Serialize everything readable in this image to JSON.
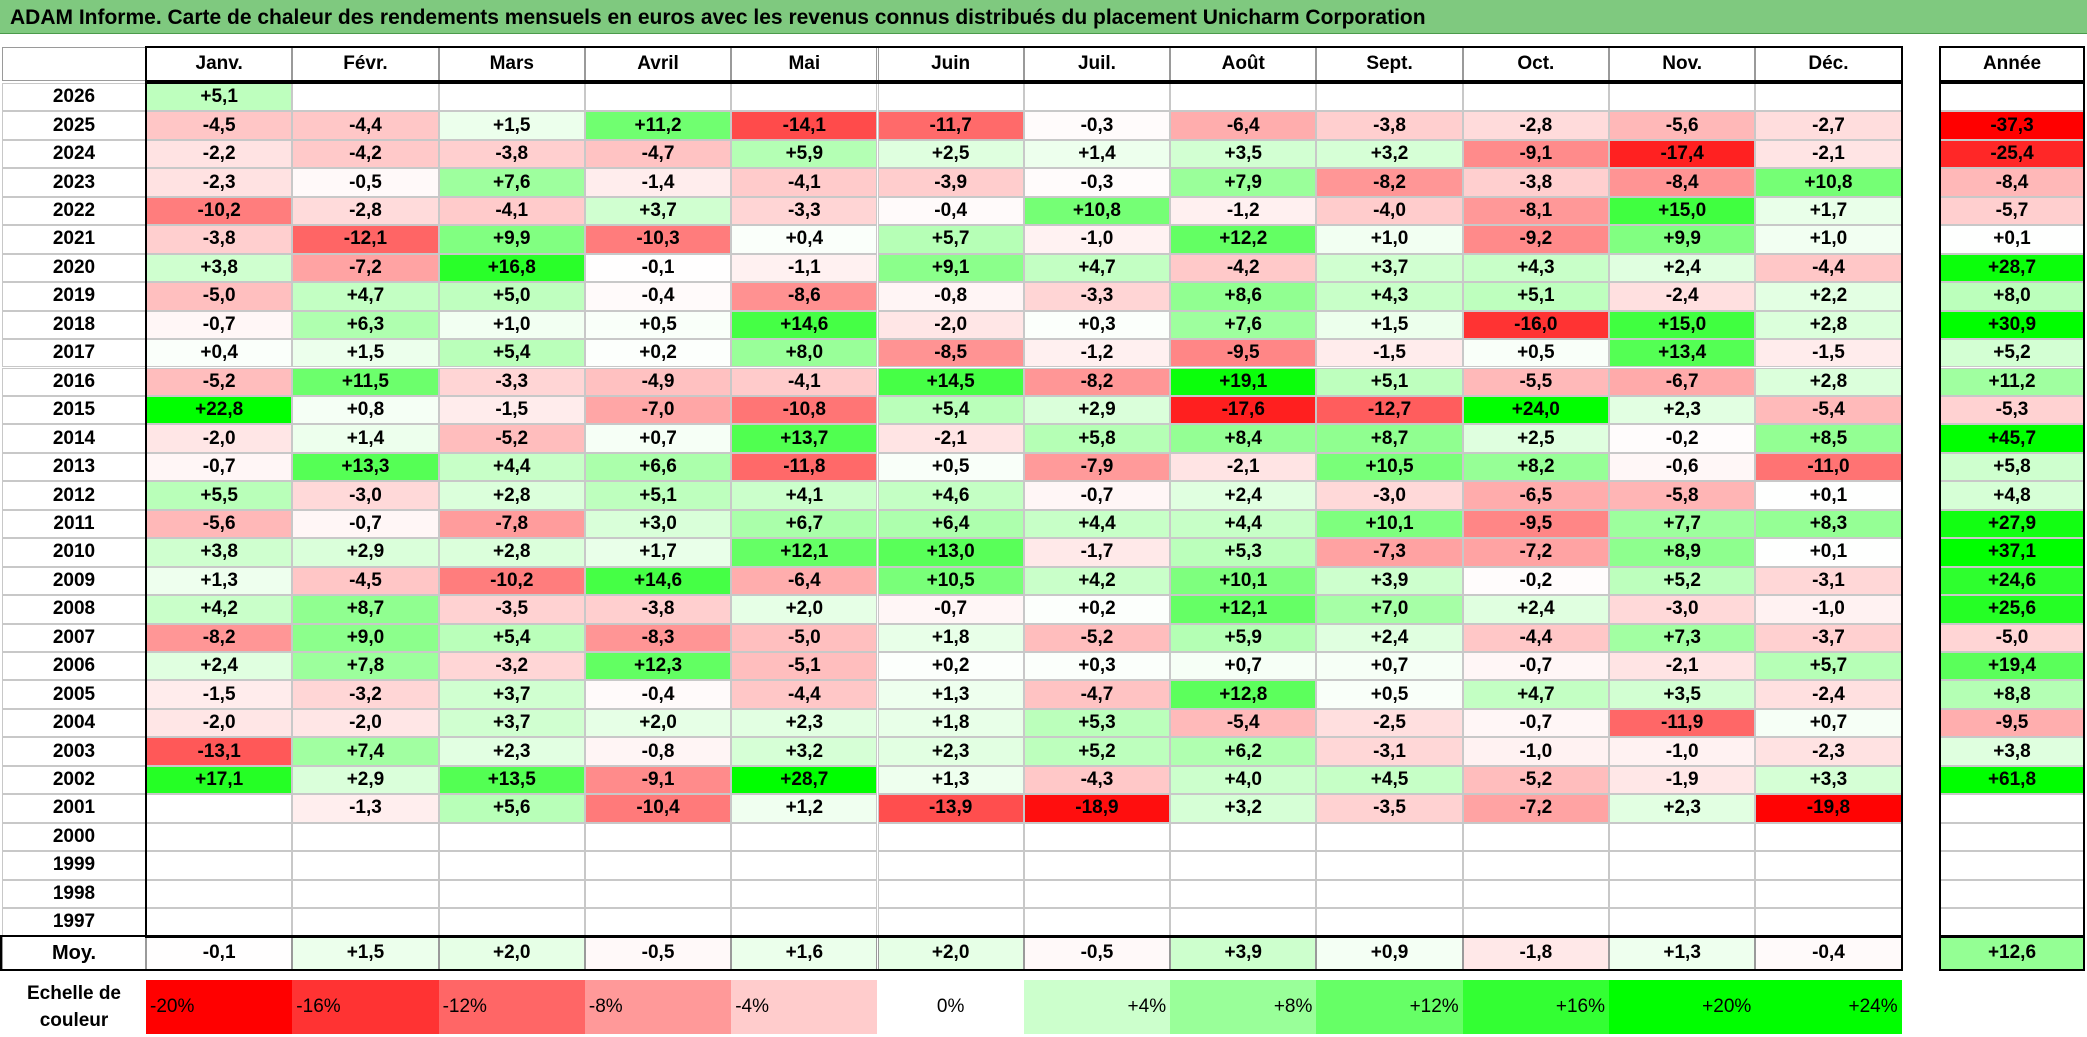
{
  "title": "ADAM Informe. Carte de chaleur des rendements mensuels en euros avec les revenus connus distribués du placement Unicharm Corporation",
  "chart_data": {
    "type": "heatmap",
    "months": [
      "Janv.",
      "Févr.",
      "Mars",
      "Avril",
      "Mai",
      "Juin",
      "Juil.",
      "Août",
      "Sept.",
      "Oct.",
      "Nov.",
      "Déc."
    ],
    "year_header": "Année",
    "avg_label": "Moy.",
    "rows": [
      {
        "year": "2026",
        "values": [
          "+5,1",
          "",
          "",
          "",
          "",
          "",
          "",
          "",
          "",
          "",
          "",
          ""
        ],
        "annual": ""
      },
      {
        "year": "2025",
        "values": [
          "-4,5",
          "-4,4",
          "+1,5",
          "+11,2",
          "-14,1",
          "-11,7",
          "-0,3",
          "-6,4",
          "-3,8",
          "-2,8",
          "-5,6",
          "-2,7"
        ],
        "annual": "-37,3"
      },
      {
        "year": "2024",
        "values": [
          "-2,2",
          "-4,2",
          "-3,8",
          "-4,7",
          "+5,9",
          "+2,5",
          "+1,4",
          "+3,5",
          "+3,2",
          "-9,1",
          "-17,4",
          "-2,1"
        ],
        "annual": "-25,4"
      },
      {
        "year": "2023",
        "values": [
          "-2,3",
          "-0,5",
          "+7,6",
          "-1,4",
          "-4,1",
          "-3,9",
          "-0,3",
          "+7,9",
          "-8,2",
          "-3,8",
          "-8,4",
          "+10,8"
        ],
        "annual": "-8,4"
      },
      {
        "year": "2022",
        "values": [
          "-10,2",
          "-2,8",
          "-4,1",
          "+3,7",
          "-3,3",
          "-0,4",
          "+10,8",
          "-1,2",
          "-4,0",
          "-8,1",
          "+15,0",
          "+1,7"
        ],
        "annual": "-5,7"
      },
      {
        "year": "2021",
        "values": [
          "-3,8",
          "-12,1",
          "+9,9",
          "-10,3",
          "+0,4",
          "+5,7",
          "-1,0",
          "+12,2",
          "+1,0",
          "-9,2",
          "+9,9",
          "+1,0"
        ],
        "annual": "+0,1"
      },
      {
        "year": "2020",
        "values": [
          "+3,8",
          "-7,2",
          "+16,8",
          "-0,1",
          "-1,1",
          "+9,1",
          "+4,7",
          "-4,2",
          "+3,7",
          "+4,3",
          "+2,4",
          "-4,4"
        ],
        "annual": "+28,7"
      },
      {
        "year": "2019",
        "values": [
          "-5,0",
          "+4,7",
          "+5,0",
          "-0,4",
          "-8,6",
          "-0,8",
          "-3,3",
          "+8,6",
          "+4,3",
          "+5,1",
          "-2,4",
          "+2,2"
        ],
        "annual": "+8,0"
      },
      {
        "year": "2018",
        "values": [
          "-0,7",
          "+6,3",
          "+1,0",
          "+0,5",
          "+14,6",
          "-2,0",
          "+0,3",
          "+7,6",
          "+1,5",
          "-16,0",
          "+15,0",
          "+2,8"
        ],
        "annual": "+30,9"
      },
      {
        "year": "2017",
        "values": [
          "+0,4",
          "+1,5",
          "+5,4",
          "+0,2",
          "+8,0",
          "-8,5",
          "-1,2",
          "-9,5",
          "-1,5",
          "+0,5",
          "+13,4",
          "-1,5"
        ],
        "annual": "+5,2"
      },
      {
        "year": "2016",
        "values": [
          "-5,2",
          "+11,5",
          "-3,3",
          "-4,9",
          "-4,1",
          "+14,5",
          "-8,2",
          "+19,1",
          "+5,1",
          "-5,5",
          "-6,7",
          "+2,8"
        ],
        "annual": "+11,2"
      },
      {
        "year": "2015",
        "values": [
          "+22,8",
          "+0,8",
          "-1,5",
          "-7,0",
          "-10,8",
          "+5,4",
          "+2,9",
          "-17,6",
          "-12,7",
          "+24,0",
          "+2,3",
          "-5,4"
        ],
        "annual": "-5,3"
      },
      {
        "year": "2014",
        "values": [
          "-2,0",
          "+1,4",
          "-5,2",
          "+0,7",
          "+13,7",
          "-2,1",
          "+5,8",
          "+8,4",
          "+8,7",
          "+2,5",
          "-0,2",
          "+8,5"
        ],
        "annual": "+45,7"
      },
      {
        "year": "2013",
        "values": [
          "-0,7",
          "+13,3",
          "+4,4",
          "+6,6",
          "-11,8",
          "+0,5",
          "-7,9",
          "-2,1",
          "+10,5",
          "+8,2",
          "-0,6",
          "-11,0"
        ],
        "annual": "+5,8"
      },
      {
        "year": "2012",
        "values": [
          "+5,5",
          "-3,0",
          "+2,8",
          "+5,1",
          "+4,1",
          "+4,6",
          "-0,7",
          "+2,4",
          "-3,0",
          "-6,5",
          "-5,8",
          "+0,1"
        ],
        "annual": "+4,8"
      },
      {
        "year": "2011",
        "values": [
          "-5,6",
          "-0,7",
          "-7,8",
          "+3,0",
          "+6,7",
          "+6,4",
          "+4,4",
          "+4,4",
          "+10,1",
          "-9,5",
          "+7,7",
          "+8,3"
        ],
        "annual": "+27,9"
      },
      {
        "year": "2010",
        "values": [
          "+3,8",
          "+2,9",
          "+2,8",
          "+1,7",
          "+12,1",
          "+13,0",
          "-1,7",
          "+5,3",
          "-7,3",
          "-7,2",
          "+8,9",
          "+0,1"
        ],
        "annual": "+37,1"
      },
      {
        "year": "2009",
        "values": [
          "+1,3",
          "-4,5",
          "-10,2",
          "+14,6",
          "-6,4",
          "+10,5",
          "+4,2",
          "+10,1",
          "+3,9",
          "-0,2",
          "+5,2",
          "-3,1"
        ],
        "annual": "+24,6"
      },
      {
        "year": "2008",
        "values": [
          "+4,2",
          "+8,7",
          "-3,5",
          "-3,8",
          "+2,0",
          "-0,7",
          "+0,2",
          "+12,1",
          "+7,0",
          "+2,4",
          "-3,0",
          "-1,0"
        ],
        "annual": "+25,6"
      },
      {
        "year": "2007",
        "values": [
          "-8,2",
          "+9,0",
          "+5,4",
          "-8,3",
          "-5,0",
          "+1,8",
          "-5,2",
          "+5,9",
          "+2,4",
          "-4,4",
          "+7,3",
          "-3,7"
        ],
        "annual": "-5,0"
      },
      {
        "year": "2006",
        "values": [
          "+2,4",
          "+7,8",
          "-3,2",
          "+12,3",
          "-5,1",
          "+0,2",
          "+0,3",
          "+0,7",
          "+0,7",
          "-0,7",
          "-2,1",
          "+5,7"
        ],
        "annual": "+19,4"
      },
      {
        "year": "2005",
        "values": [
          "-1,5",
          "-3,2",
          "+3,7",
          "-0,4",
          "-4,4",
          "+1,3",
          "-4,7",
          "+12,8",
          "+0,5",
          "+4,7",
          "+3,5",
          "-2,4"
        ],
        "annual": "+8,8"
      },
      {
        "year": "2004",
        "values": [
          "-2,0",
          "-2,0",
          "+3,7",
          "+2,0",
          "+2,3",
          "+1,8",
          "+5,3",
          "-5,4",
          "-2,5",
          "-0,7",
          "-11,9",
          "+0,7"
        ],
        "annual": "-9,5"
      },
      {
        "year": "2003",
        "values": [
          "-13,1",
          "+7,4",
          "+2,3",
          "-0,8",
          "+3,2",
          "+2,3",
          "+5,2",
          "+6,2",
          "-3,1",
          "-1,0",
          "-1,0",
          "-2,3"
        ],
        "annual": "+3,8"
      },
      {
        "year": "2002",
        "values": [
          "+17,1",
          "+2,9",
          "+13,5",
          "-9,1",
          "+28,7",
          "+1,3",
          "-4,3",
          "+4,0",
          "+4,5",
          "-5,2",
          "-1,9",
          "+3,3"
        ],
        "annual": "+61,8"
      },
      {
        "year": "2001",
        "values": [
          "",
          "-1,3",
          "+5,6",
          "-10,4",
          "+1,2",
          "-13,9",
          "-18,9",
          "+3,2",
          "-3,5",
          "-7,2",
          "+2,3",
          "-19,8"
        ],
        "annual": ""
      },
      {
        "year": "2000",
        "values": [
          "",
          "",
          "",
          "",
          "",
          "",
          "",
          "",
          "",
          "",
          "",
          ""
        ],
        "annual": ""
      },
      {
        "year": "1999",
        "values": [
          "",
          "",
          "",
          "",
          "",
          "",
          "",
          "",
          "",
          "",
          "",
          ""
        ],
        "annual": ""
      },
      {
        "year": "1998",
        "values": [
          "",
          "",
          "",
          "",
          "",
          "",
          "",
          "",
          "",
          "",
          "",
          ""
        ],
        "annual": ""
      },
      {
        "year": "1997",
        "values": [
          "",
          "",
          "",
          "",
          "",
          "",
          "",
          "",
          "",
          "",
          "",
          ""
        ],
        "annual": ""
      }
    ],
    "averages": [
      "-0,1",
      "+1,5",
      "+2,0",
      "-0,5",
      "+1,6",
      "+2,0",
      "-0,5",
      "+3,9",
      "+0,9",
      "-1,8",
      "+1,3",
      "-0,4"
    ],
    "annual_average": "+12,6",
    "scale_label": "Echelle de couleur",
    "scale": [
      {
        "label": "-20%",
        "value": -20
      },
      {
        "label": "-16%",
        "value": -16
      },
      {
        "label": "-12%",
        "value": -12
      },
      {
        "label": "-8%",
        "value": -8
      },
      {
        "label": "-4%",
        "value": -4
      },
      {
        "label": "0%",
        "value": 0
      },
      {
        "label": "+4%",
        "value": 4
      },
      {
        "label": "+8%",
        "value": 8
      },
      {
        "label": "+12%",
        "value": 12
      },
      {
        "label": "+16%",
        "value": 16
      },
      {
        "label": "+20%",
        "value": 20
      },
      {
        "label": "+24%",
        "value": 24
      }
    ],
    "colors": {
      "negative": "#ff0000",
      "neutral": "#ffffff",
      "positive": "#00ff00"
    }
  }
}
